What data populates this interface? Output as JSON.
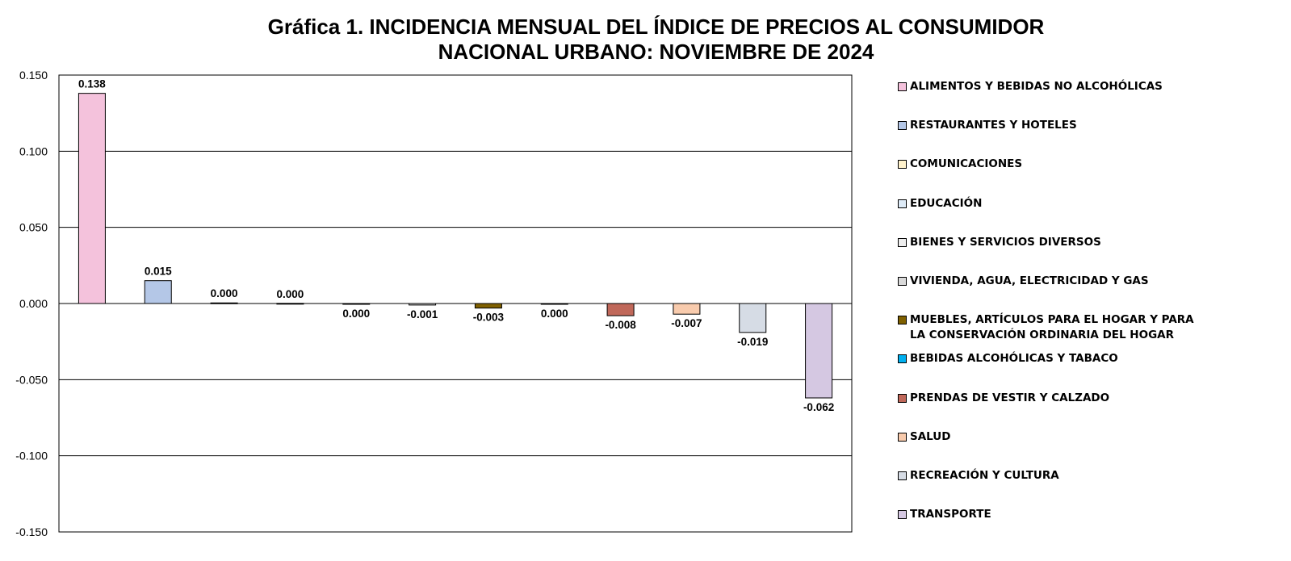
{
  "chart_data": {
    "type": "bar",
    "title": "Gráfica 1.  INCIDENCIA MENSUAL  DEL ÍNDICE DE PRECIOS AL CONSUMIDOR",
    "subtitle": "NACIONAL URBANO: NOVIEMBRE DE 2024",
    "xlabel": "",
    "ylabel": "",
    "ylim": [
      -0.15,
      0.15
    ],
    "yticks": [
      0.15,
      0.1,
      0.05,
      0.0,
      -0.05,
      -0.1,
      -0.15
    ],
    "ytick_labels": [
      "0.150",
      "0.100",
      "0.050",
      "0.000",
      "-0.050",
      "-0.100",
      "-0.150"
    ],
    "grid": true,
    "legend_position": "right",
    "series": [
      {
        "name": "ALIMENTOS Y BEBIDAS NO ALCOHÓLICAS",
        "value": 0.138,
        "label": "0.138",
        "color": "#F4C2DC"
      },
      {
        "name": "RESTAURANTES Y HOTELES",
        "value": 0.015,
        "label": "0.015",
        "color": "#B4C7E7"
      },
      {
        "name": "COMUNICACIONES",
        "value": 0.0004,
        "label": "0.000",
        "color": "#FFF2CC"
      },
      {
        "name": "EDUCACIÓN",
        "value": 0.0001,
        "label": "0.000",
        "color": "#DEEBF7"
      },
      {
        "name": "BIENES Y SERVICIOS DIVERSOS",
        "value": -0.0003,
        "label": "0.000",
        "color": "#EDEDED"
      },
      {
        "name": "VIVIENDA, AGUA, ELECTRICIDAD Y GAS",
        "value": -0.001,
        "label": "-0.001",
        "color": "#D9D9D9"
      },
      {
        "name": "MUEBLES, ARTÍCULOS PARA EL HOGAR Y PARA LA CONSERVACIÓN ORDINARIA DEL HOGAR",
        "value": -0.003,
        "label": "-0.003",
        "color": "#7F6000"
      },
      {
        "name": "BEBIDAS ALCOHÓLICAS Y TABACO",
        "value": -0.0004,
        "label": "0.000",
        "color": "#00B0F0"
      },
      {
        "name": "PRENDAS DE VESTIR Y CALZADO",
        "value": -0.008,
        "label": "-0.008",
        "color": "#C0685A"
      },
      {
        "name": "SALUD",
        "value": -0.007,
        "label": "-0.007",
        "color": "#F8CBAD"
      },
      {
        "name": "RECREACIÓN Y CULTURA",
        "value": -0.019,
        "label": "-0.019",
        "color": "#D6DCE5"
      },
      {
        "name": "TRANSPORTE",
        "value": -0.062,
        "label": "-0.062",
        "color": "#D5C8E2"
      }
    ]
  }
}
